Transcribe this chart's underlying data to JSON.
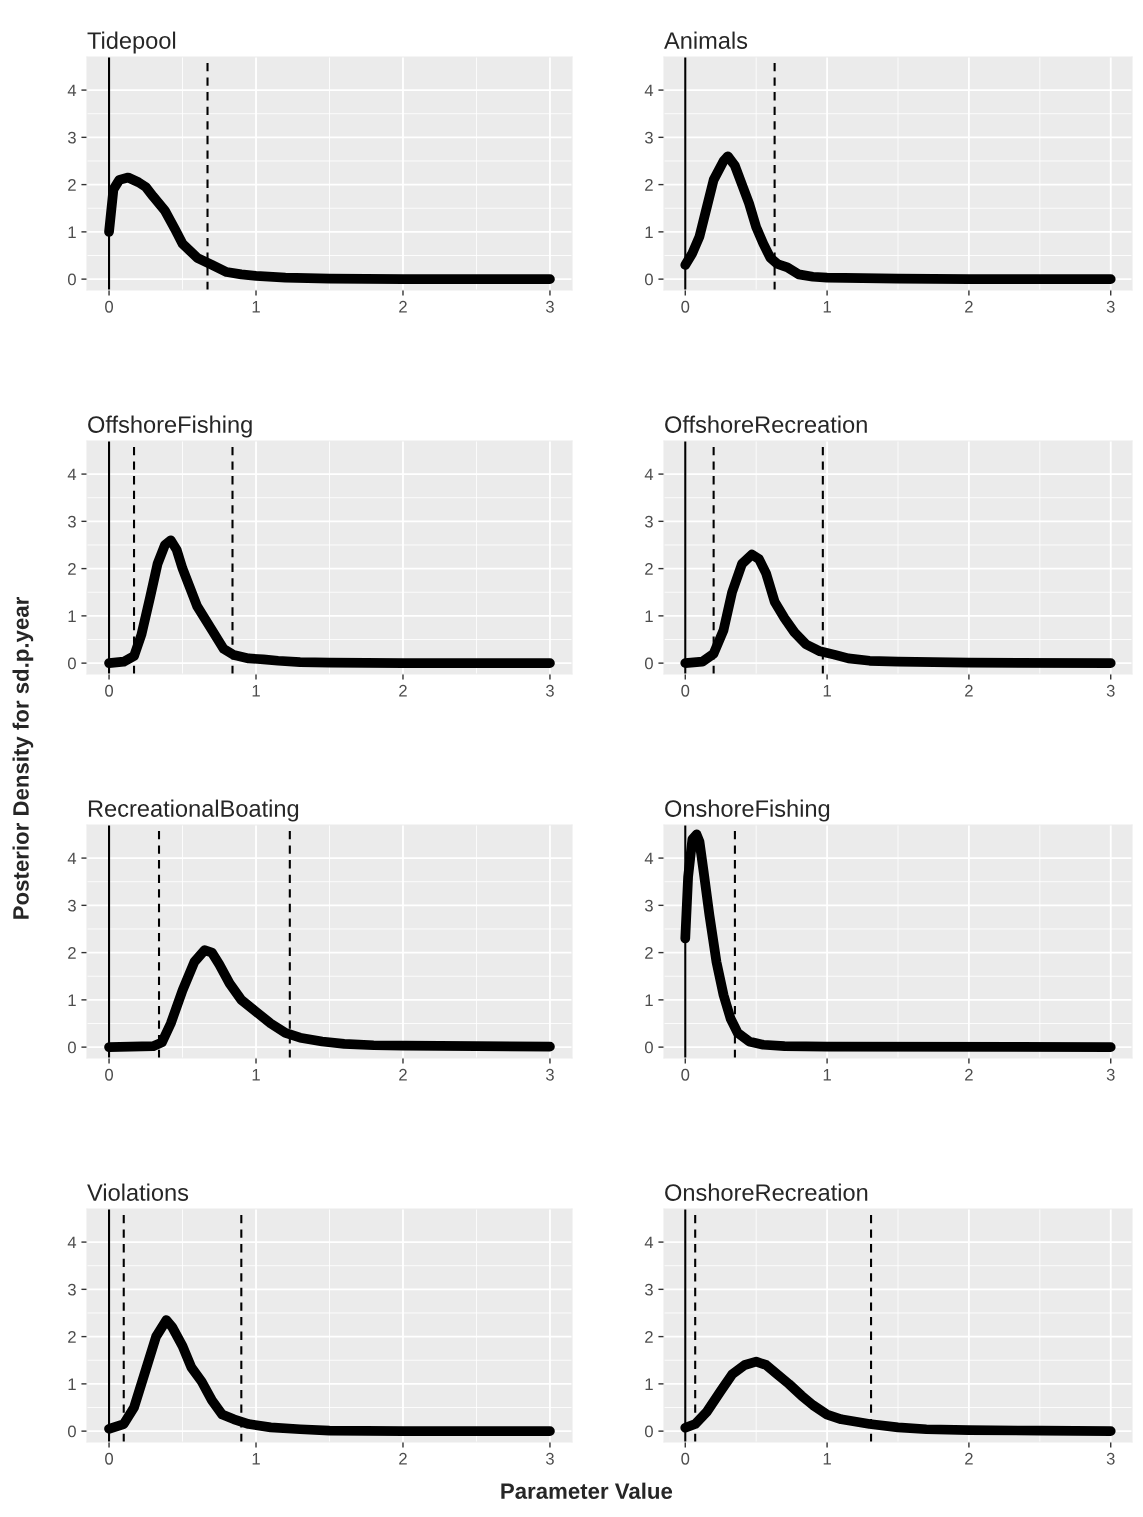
{
  "chart_data": [
    {
      "type": "line",
      "title": "Tidepool",
      "xlim": [
        -0.15,
        3.15
      ],
      "ylim": [
        -0.23,
        4.7
      ],
      "xticks": [
        0,
        1,
        2,
        3
      ],
      "yticks": [
        0,
        1,
        2,
        3,
        4
      ],
      "grid": true,
      "legend": false,
      "series": [
        {
          "color": "#000000",
          "x": [
            0,
            0.03,
            0.07,
            0.13,
            0.2,
            0.25,
            0.3,
            0.38,
            0.45,
            0.5,
            0.6,
            0.7,
            0.8,
            0.9,
            1.0,
            1.2,
            1.5,
            2,
            3
          ],
          "values": [
            1.0,
            1.9,
            2.1,
            2.15,
            2.05,
            1.95,
            1.75,
            1.45,
            1.05,
            0.75,
            0.45,
            0.3,
            0.15,
            0.1,
            0.07,
            0.03,
            0.01,
            0,
            0
          ]
        }
      ],
      "ref_lines": [
        {
          "axis": "x",
          "value": 0,
          "line_style": "solid",
          "color": "#000000"
        },
        {
          "axis": "x",
          "value": 0.67,
          "line_style": "dashed",
          "color": "#000000"
        }
      ]
    },
    {
      "type": "line",
      "title": "Animals",
      "xlim": [
        -0.15,
        3.15
      ],
      "ylim": [
        -0.23,
        4.7
      ],
      "xticks": [
        0,
        1,
        2,
        3
      ],
      "yticks": [
        0,
        1,
        2,
        3,
        4
      ],
      "grid": true,
      "legend": false,
      "series": [
        {
          "color": "#000000",
          "x": [
            0,
            0.05,
            0.1,
            0.15,
            0.2,
            0.27,
            0.3,
            0.35,
            0.4,
            0.45,
            0.5,
            0.55,
            0.6,
            0.65,
            0.72,
            0.8,
            0.9,
            1,
            1.5,
            2,
            3
          ],
          "values": [
            0.3,
            0.55,
            0.9,
            1.5,
            2.1,
            2.5,
            2.6,
            2.4,
            2.0,
            1.6,
            1.1,
            0.75,
            0.45,
            0.32,
            0.25,
            0.1,
            0.05,
            0.03,
            0.01,
            0,
            0
          ]
        }
      ],
      "ref_lines": [
        {
          "axis": "x",
          "value": 0,
          "line_style": "solid",
          "color": "#000000"
        },
        {
          "axis": "x",
          "value": 0.63,
          "line_style": "dashed",
          "color": "#000000"
        }
      ]
    },
    {
      "type": "line",
      "title": "OffshoreFishing",
      "ylabel": "Posterior Density for sd.p.year",
      "xlim": [
        -0.15,
        3.15
      ],
      "ylim": [
        -0.23,
        4.7
      ],
      "xticks": [
        0,
        1,
        2,
        3
      ],
      "yticks": [
        0,
        1,
        2,
        3,
        4
      ],
      "grid": true,
      "legend": false,
      "series": [
        {
          "color": "#000000",
          "x": [
            0,
            0.1,
            0.17,
            0.22,
            0.28,
            0.33,
            0.38,
            0.42,
            0.46,
            0.5,
            0.55,
            0.6,
            0.7,
            0.78,
            0.85,
            0.95,
            1.05,
            1.15,
            1.3,
            1.5,
            2,
            3
          ],
          "values": [
            0,
            0.03,
            0.15,
            0.6,
            1.4,
            2.1,
            2.5,
            2.6,
            2.4,
            2.0,
            1.6,
            1.2,
            0.7,
            0.3,
            0.17,
            0.1,
            0.08,
            0.05,
            0.02,
            0.01,
            0,
            0
          ]
        }
      ],
      "ref_lines": [
        {
          "axis": "x",
          "value": 0,
          "line_style": "solid",
          "color": "#000000"
        },
        {
          "axis": "x",
          "value": 0.17,
          "line_style": "dashed",
          "color": "#000000"
        },
        {
          "axis": "x",
          "value": 0.84,
          "line_style": "dashed",
          "color": "#000000"
        }
      ]
    },
    {
      "type": "line",
      "title": "OffshoreRecreation",
      "xlim": [
        -0.15,
        3.15
      ],
      "ylim": [
        -0.23,
        4.7
      ],
      "xticks": [
        0,
        1,
        2,
        3
      ],
      "yticks": [
        0,
        1,
        2,
        3,
        4
      ],
      "grid": true,
      "legend": false,
      "series": [
        {
          "color": "#000000",
          "x": [
            0,
            0.12,
            0.2,
            0.27,
            0.33,
            0.4,
            0.47,
            0.52,
            0.57,
            0.63,
            0.7,
            0.77,
            0.85,
            0.95,
            1.05,
            1.15,
            1.3,
            1.5,
            2,
            3
          ],
          "values": [
            0,
            0.03,
            0.2,
            0.7,
            1.5,
            2.1,
            2.3,
            2.2,
            1.9,
            1.3,
            0.95,
            0.65,
            0.4,
            0.25,
            0.18,
            0.1,
            0.05,
            0.03,
            0.01,
            0
          ]
        }
      ],
      "ref_lines": [
        {
          "axis": "x",
          "value": 0,
          "line_style": "solid",
          "color": "#000000"
        },
        {
          "axis": "x",
          "value": 0.2,
          "line_style": "dashed",
          "color": "#000000"
        },
        {
          "axis": "x",
          "value": 0.97,
          "line_style": "dashed",
          "color": "#000000"
        }
      ]
    },
    {
      "type": "line",
      "title": "RecreationalBoating",
      "xlim": [
        -0.15,
        3.15
      ],
      "ylim": [
        -0.23,
        4.7
      ],
      "xticks": [
        0,
        1,
        2,
        3
      ],
      "yticks": [
        0,
        1,
        2,
        3,
        4
      ],
      "grid": true,
      "legend": false,
      "series": [
        {
          "color": "#000000",
          "x": [
            0,
            0.3,
            0.36,
            0.42,
            0.5,
            0.58,
            0.65,
            0.7,
            0.75,
            0.82,
            0.9,
            1.0,
            1.1,
            1.2,
            1.3,
            1.45,
            1.6,
            1.8,
            2.0,
            2.5,
            3
          ],
          "values": [
            0,
            0.02,
            0.1,
            0.5,
            1.2,
            1.8,
            2.05,
            2.0,
            1.75,
            1.35,
            1.0,
            0.75,
            0.5,
            0.3,
            0.2,
            0.12,
            0.07,
            0.04,
            0.03,
            0.02,
            0.01
          ]
        }
      ],
      "ref_lines": [
        {
          "axis": "x",
          "value": 0,
          "line_style": "solid",
          "color": "#000000"
        },
        {
          "axis": "x",
          "value": 0.34,
          "line_style": "dashed",
          "color": "#000000"
        },
        {
          "axis": "x",
          "value": 1.23,
          "line_style": "dashed",
          "color": "#000000"
        }
      ]
    },
    {
      "type": "line",
      "title": "OnshoreFishing",
      "xlim": [
        -0.15,
        3.15
      ],
      "ylim": [
        -0.23,
        4.7
      ],
      "xticks": [
        0,
        1,
        2,
        3
      ],
      "yticks": [
        0,
        1,
        2,
        3,
        4
      ],
      "grid": true,
      "legend": false,
      "series": [
        {
          "color": "#000000",
          "x": [
            0,
            0.02,
            0.05,
            0.08,
            0.1,
            0.13,
            0.17,
            0.22,
            0.27,
            0.32,
            0.37,
            0.45,
            0.55,
            0.7,
            1,
            3
          ],
          "values": [
            2.3,
            3.6,
            4.4,
            4.5,
            4.35,
            3.7,
            2.8,
            1.8,
            1.1,
            0.6,
            0.3,
            0.12,
            0.05,
            0.02,
            0.01,
            0
          ]
        }
      ],
      "ref_lines": [
        {
          "axis": "x",
          "value": 0,
          "line_style": "solid",
          "color": "#000000"
        },
        {
          "axis": "x",
          "value": 0.35,
          "line_style": "dashed",
          "color": "#000000"
        }
      ]
    },
    {
      "type": "line",
      "title": "Violations",
      "xlabel": "Parameter Value",
      "xlim": [
        -0.15,
        3.15
      ],
      "ylim": [
        -0.23,
        4.7
      ],
      "xticks": [
        0,
        1,
        2,
        3
      ],
      "yticks": [
        0,
        1,
        2,
        3,
        4
      ],
      "grid": true,
      "legend": false,
      "series": [
        {
          "color": "#000000",
          "x": [
            0,
            0.1,
            0.17,
            0.25,
            0.32,
            0.39,
            0.43,
            0.5,
            0.56,
            0.63,
            0.7,
            0.77,
            0.85,
            0.95,
            1.1,
            1.3,
            1.5,
            2,
            3
          ],
          "values": [
            0.05,
            0.15,
            0.5,
            1.3,
            2.0,
            2.35,
            2.2,
            1.8,
            1.35,
            1.05,
            0.65,
            0.35,
            0.25,
            0.15,
            0.08,
            0.04,
            0.01,
            0,
            0
          ]
        }
      ],
      "ref_lines": [
        {
          "axis": "x",
          "value": 0,
          "line_style": "solid",
          "color": "#000000"
        },
        {
          "axis": "x",
          "value": 0.1,
          "line_style": "dashed",
          "color": "#000000"
        },
        {
          "axis": "x",
          "value": 0.9,
          "line_style": "dashed",
          "color": "#000000"
        }
      ]
    },
    {
      "type": "line",
      "title": "OnshoreRecreation",
      "xlim": [
        -0.15,
        3.15
      ],
      "ylim": [
        -0.23,
        4.7
      ],
      "xticks": [
        0,
        1,
        2,
        3
      ],
      "yticks": [
        0,
        1,
        2,
        3,
        4
      ],
      "grid": true,
      "legend": false,
      "series": [
        {
          "color": "#000000",
          "x": [
            0,
            0.07,
            0.15,
            0.25,
            0.33,
            0.42,
            0.5,
            0.57,
            0.65,
            0.73,
            0.82,
            0.9,
            1.0,
            1.1,
            1.3,
            1.5,
            1.7,
            2,
            2.5,
            3
          ],
          "values": [
            0.07,
            0.15,
            0.4,
            0.85,
            1.2,
            1.4,
            1.47,
            1.4,
            1.2,
            1.0,
            0.75,
            0.55,
            0.35,
            0.25,
            0.15,
            0.08,
            0.04,
            0.02,
            0.01,
            0
          ]
        }
      ],
      "ref_lines": [
        {
          "axis": "x",
          "value": 0,
          "line_style": "solid",
          "color": "#000000"
        },
        {
          "axis": "x",
          "value": 0.07,
          "line_style": "dashed",
          "color": "#000000"
        },
        {
          "axis": "x",
          "value": 1.31,
          "line_style": "dashed",
          "color": "#000000"
        }
      ]
    }
  ]
}
